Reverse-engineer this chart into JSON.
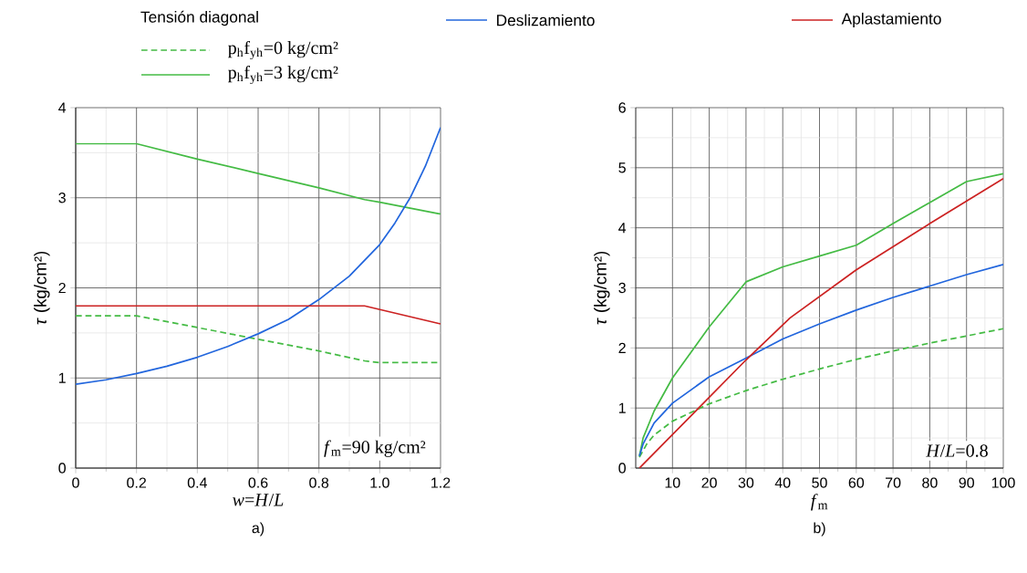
{
  "chart_data": [
    {
      "type": "line",
      "legend_title": "Tensión diagonal",
      "legend": "top",
      "grid": true,
      "xlabel": "*w*=*H*/*L*",
      "ylabel": "*τ* (kg/cm²)",
      "xlim": [
        0,
        1.2
      ],
      "ylim": [
        0,
        4
      ],
      "xticks": [
        0,
        0.2,
        0.4,
        0.6,
        0.8,
        {
          "value": 1.0,
          "label": "1.0"
        },
        1.2
      ],
      "yticks": [
        0,
        1,
        2,
        3,
        4
      ],
      "annotations": [
        "*f*$_{m}$=90 kg/cm²",
        "a)"
      ],
      "series": [
        {
          "name": "p$_{h}$f$_{yh}$=0 kg/cm²",
          "color": "#44bb44",
          "line_style": "dashed",
          "x": [
            0,
            0.2,
            0.4,
            0.6,
            0.8,
            0.95,
            1.0,
            1.2
          ],
          "values": [
            1.69,
            1.69,
            1.56,
            1.43,
            1.3,
            1.19,
            1.17,
            1.17
          ]
        },
        {
          "name": "p$_{h}$f$_{yh}$=3 kg/cm²",
          "color": "#44bb44",
          "line_style": "solid",
          "x": [
            0,
            0.2,
            0.4,
            0.6,
            0.8,
            0.95,
            1.0,
            1.2
          ],
          "values": [
            3.6,
            3.6,
            3.43,
            3.27,
            3.11,
            2.98,
            2.95,
            2.82
          ]
        },
        {
          "name": "Deslizamiento",
          "color": "#2266dd",
          "line_style": "solid",
          "x": [
            0,
            0.1,
            0.2,
            0.3,
            0.4,
            0.5,
            0.6,
            0.7,
            0.8,
            0.9,
            1.0,
            1.05,
            1.1,
            1.15,
            1.2
          ],
          "values": [
            0.93,
            0.98,
            1.05,
            1.13,
            1.23,
            1.35,
            1.49,
            1.65,
            1.87,
            2.13,
            2.48,
            2.72,
            3.0,
            3.35,
            3.78
          ]
        },
        {
          "name": "Aplastamiento",
          "color": "#cc2222",
          "line_style": "solid",
          "x": [
            0,
            0.95,
            1.2
          ],
          "values": [
            1.8,
            1.8,
            1.6
          ]
        }
      ]
    },
    {
      "type": "line",
      "grid": true,
      "xlabel": "*f*$_{m}$",
      "ylabel": "*τ* (kg/cm²)",
      "xlim": [
        0,
        100
      ],
      "ylim": [
        0,
        6
      ],
      "xticks": [
        10,
        20,
        30,
        40,
        50,
        60,
        70,
        80,
        90,
        100
      ],
      "yticks": [
        0,
        1,
        2,
        3,
        4,
        5,
        6
      ],
      "annotations": [
        "*H*/*L*=0.8",
        "b)"
      ],
      "series": [
        {
          "color": "#44bb44",
          "line_style": "dashed",
          "x": [
            1,
            3,
            5,
            10,
            20,
            30,
            40,
            50,
            60,
            70,
            80,
            90,
            100
          ],
          "values": [
            0.18,
            0.4,
            0.55,
            0.78,
            1.07,
            1.29,
            1.48,
            1.65,
            1.81,
            1.95,
            2.08,
            2.2,
            2.32
          ]
        },
        {
          "color": "#44bb44",
          "line_style": "solid",
          "x": [
            1,
            2,
            5,
            10,
            20,
            30,
            40,
            50,
            60,
            70,
            80,
            90,
            100
          ],
          "values": [
            0.2,
            0.5,
            0.95,
            1.5,
            2.35,
            3.1,
            3.35,
            3.53,
            3.71,
            4.07,
            4.42,
            4.77,
            4.9
          ]
        },
        {
          "color": "#2266dd",
          "line_style": "solid",
          "x": [
            1,
            2,
            5,
            10,
            20,
            30,
            40,
            50,
            60,
            70,
            80,
            90,
            100
          ],
          "values": [
            0.2,
            0.4,
            0.75,
            1.08,
            1.52,
            1.83,
            2.15,
            2.4,
            2.63,
            2.84,
            3.03,
            3.22,
            3.39
          ]
        },
        {
          "color": "#cc2222",
          "line_style": "solid",
          "x": [
            1,
            30,
            42,
            60,
            80,
            100
          ],
          "values": [
            0,
            1.8,
            2.5,
            3.3,
            4.07,
            4.82
          ]
        }
      ]
    }
  ]
}
